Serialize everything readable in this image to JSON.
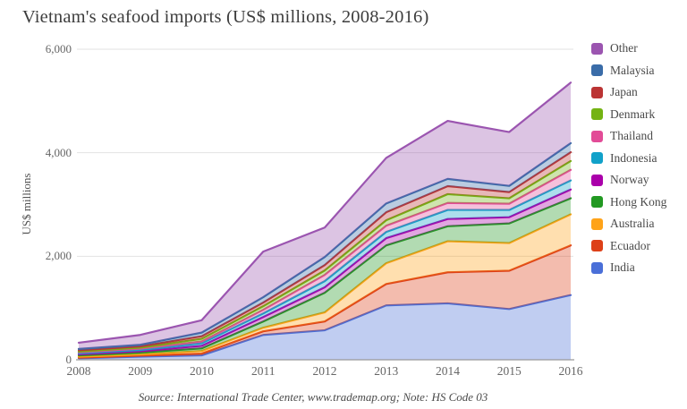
{
  "title": "Vietnam's seafood imports (US$ millions, 2008-2016)",
  "source_note": "Source: International Trade Center, www.trademap.org; Note: HS Code 03",
  "colors": {
    "grid": "#e2e2e2",
    "axis_line": "#999999",
    "title_text": "#3d3d3d",
    "tick_text": "#666666",
    "legend_text": "#4a4a4a"
  },
  "chart_data": {
    "type": "area",
    "stacked": true,
    "title": "Vietnam's seafood imports (US$ millions, 2008-2016)",
    "xlabel": "",
    "ylabel": "US$ millions",
    "x": [
      "2008",
      "2009",
      "2010",
      "2011",
      "2012",
      "2013",
      "2014",
      "2015",
      "2016"
    ],
    "ylim": [
      0,
      6000
    ],
    "yticks": [
      0,
      2000,
      4000,
      6000
    ],
    "ytick_labels": [
      "0",
      "2,000",
      "4,000",
      "6,000"
    ],
    "grid": true,
    "legend_position": "right",
    "fill_opacity": 0.35,
    "series": [
      {
        "name": "India",
        "color": "#4a6fd8",
        "values": [
          30,
          60,
          85,
          480,
          570,
          1050,
          1090,
          980,
          1250
        ]
      },
      {
        "name": "Ecuador",
        "color": "#dd4018",
        "values": [
          10,
          20,
          35,
          70,
          170,
          415,
          600,
          740,
          960
        ]
      },
      {
        "name": "Australia",
        "color": "#ffa319",
        "values": [
          20,
          25,
          50,
          70,
          175,
          400,
          600,
          535,
          600
        ]
      },
      {
        "name": "Hong Kong",
        "color": "#229922",
        "values": [
          25,
          35,
          50,
          120,
          380,
          345,
          290,
          380,
          310
        ]
      },
      {
        "name": "Norway",
        "color": "#aa00aa",
        "values": [
          20,
          25,
          50,
          85,
          105,
          140,
          140,
          120,
          170
        ]
      },
      {
        "name": "Indonesia",
        "color": "#11a1c9",
        "values": [
          20,
          25,
          50,
          70,
          120,
          120,
          175,
          140,
          175
        ]
      },
      {
        "name": "Thailand",
        "color": "#e24b97",
        "values": [
          20,
          25,
          35,
          70,
          120,
          120,
          135,
          120,
          205
        ]
      },
      {
        "name": "Denmark",
        "color": "#74b313",
        "values": [
          15,
          20,
          50,
          70,
          85,
          105,
          170,
          105,
          170
        ]
      },
      {
        "name": "Japan",
        "color": "#bb3434",
        "values": [
          25,
          25,
          50,
          70,
          105,
          155,
          155,
          120,
          170
        ]
      },
      {
        "name": "Malaysia",
        "color": "#3a6ca8",
        "values": [
          25,
          30,
          70,
          105,
          155,
          170,
          140,
          120,
          175
        ]
      },
      {
        "name": "Other",
        "color": "#9b55b0",
        "values": [
          120,
          190,
          240,
          880,
          570,
          880,
          1120,
          1040,
          1170
        ]
      }
    ],
    "legend_order_top_to_bottom": [
      "Other",
      "Malaysia",
      "Japan",
      "Denmark",
      "Thailand",
      "Indonesia",
      "Norway",
      "Hong Kong",
      "Australia",
      "Ecuador",
      "India"
    ]
  }
}
